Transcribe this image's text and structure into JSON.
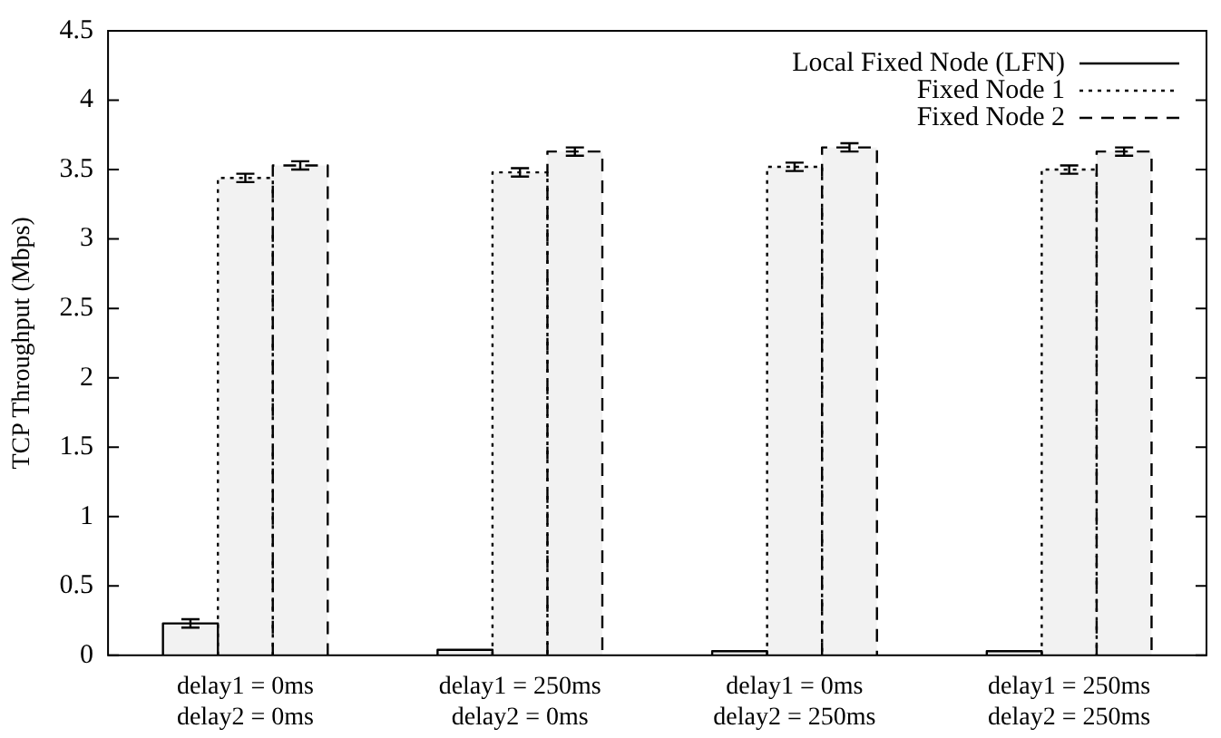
{
  "chart_data": {
    "type": "bar",
    "ylabel": "TCP Throughput (Mbps)",
    "categories": [
      "delay1 = 0ms\ndelay2 = 0ms",
      "delay1 = 250ms\ndelay2 = 0ms",
      "delay1 = 0ms\ndelay2 = 250ms",
      "delay1 = 250ms\ndelay2 = 250ms"
    ],
    "series": [
      {
        "name": "Local Fixed Node (LFN)",
        "color": "#000000",
        "line_style": "solid",
        "values": [
          0.23,
          0.04,
          0.03,
          0.03
        ],
        "errors": [
          0.03,
          null,
          null,
          null
        ]
      },
      {
        "name": "Fixed Node 1",
        "color": "#000000",
        "line_style": "dotted",
        "values": [
          3.44,
          3.48,
          3.52,
          3.5
        ],
        "errors": [
          0.03,
          0.03,
          0.03,
          0.03
        ]
      },
      {
        "name": "Fixed Node 2",
        "color": "#000000",
        "line_style": "dashed",
        "values": [
          3.53,
          3.63,
          3.66,
          3.63
        ],
        "errors": [
          0.03,
          0.03,
          0.03,
          0.03
        ]
      }
    ],
    "ylim": [
      0,
      4.5
    ],
    "yticks": [
      0,
      0.5,
      1,
      1.5,
      2,
      2.5,
      3,
      3.5,
      4,
      4.5
    ],
    "grid": false,
    "legend": "top right"
  }
}
